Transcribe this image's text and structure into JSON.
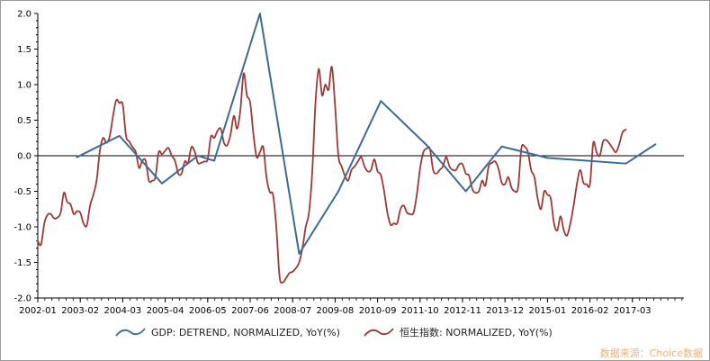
{
  "chart_data": {
    "type": "line",
    "title": "",
    "xlabel": "",
    "ylabel": "",
    "ylim": [
      -2.0,
      2.0
    ],
    "y_ticks": [
      "2.0",
      "1.5",
      "1.0",
      "0.5",
      "0.0",
      "-0.5",
      "-1.0",
      "-1.5",
      "-2.0"
    ],
    "x_tick_labels": [
      "2002-01",
      "2003-02",
      "2004-03",
      "2005-04",
      "2006-05",
      "2007-06",
      "2008-07",
      "2009-08",
      "2010-09",
      "2011-10",
      "2012-11",
      "2013-12",
      "2015-01",
      "2016-02",
      "2017-03"
    ],
    "zero_line": true,
    "grid": false,
    "legend_position": "bottom",
    "series": [
      {
        "name": "GDP: DETREND, NORMALIZED, YoY(%)",
        "color": "#3e6b94",
        "points": [
          [
            "2003-01",
            -0.02
          ],
          [
            "2004-02",
            0.28
          ],
          [
            "2005-03",
            -0.39
          ],
          [
            "2006-02",
            0.0
          ],
          [
            "2006-07",
            -0.07
          ],
          [
            "2007-09",
            2.0
          ],
          [
            "2008-09",
            -1.38
          ],
          [
            "2009-09",
            -0.5
          ],
          [
            "2010-10",
            0.77
          ],
          [
            "2011-12",
            0.15
          ],
          [
            "2012-12",
            -0.5
          ],
          [
            "2013-11",
            0.13
          ],
          [
            "2015-01",
            -0.03
          ],
          [
            "2017-01",
            -0.11
          ],
          [
            "2017-10",
            0.16
          ]
        ]
      },
      {
        "name": "恒生指数: NORMALIZED, YoY(%)",
        "color": "#9c3a36",
        "points": [
          [
            "2002-01",
            -1.2
          ],
          [
            "2002-02",
            -1.25
          ],
          [
            "2002-03",
            -0.95
          ],
          [
            "2002-04",
            -0.83
          ],
          [
            "2002-05",
            -0.82
          ],
          [
            "2002-06",
            -0.88
          ],
          [
            "2002-07",
            -0.87
          ],
          [
            "2002-08",
            -0.8
          ],
          [
            "2002-09",
            -0.52
          ],
          [
            "2002-10",
            -0.65
          ],
          [
            "2002-11",
            -0.68
          ],
          [
            "2002-12",
            -0.82
          ],
          [
            "2003-01",
            -0.78
          ],
          [
            "2003-02",
            -0.8
          ],
          [
            "2003-03",
            -0.95
          ],
          [
            "2003-04",
            -0.98
          ],
          [
            "2003-05",
            -0.7
          ],
          [
            "2003-06",
            -0.55
          ],
          [
            "2003-07",
            -0.35
          ],
          [
            "2003-08",
            0.07
          ],
          [
            "2003-09",
            0.25
          ],
          [
            "2003-10",
            0.18
          ],
          [
            "2003-11",
            0.27
          ],
          [
            "2003-12",
            0.55
          ],
          [
            "2004-01",
            0.78
          ],
          [
            "2004-02",
            0.74
          ],
          [
            "2004-03",
            0.72
          ],
          [
            "2004-04",
            0.28
          ],
          [
            "2004-05",
            0.2
          ],
          [
            "2004-06",
            0.12
          ],
          [
            "2004-07",
            0.05
          ],
          [
            "2004-08",
            -0.17
          ],
          [
            "2004-09",
            -0.07
          ],
          [
            "2004-10",
            -0.07
          ],
          [
            "2004-11",
            -0.35
          ],
          [
            "2004-12",
            -0.35
          ],
          [
            "2005-01",
            -0.3
          ],
          [
            "2005-02",
            0.05
          ],
          [
            "2005-03",
            0.02
          ],
          [
            "2005-04",
            0.07
          ],
          [
            "2005-05",
            0.11
          ],
          [
            "2005-06",
            0.0
          ],
          [
            "2005-07",
            -0.07
          ],
          [
            "2005-08",
            -0.25
          ],
          [
            "2005-09",
            -0.25
          ],
          [
            "2005-10",
            -0.08
          ],
          [
            "2005-11",
            -0.1
          ],
          [
            "2005-12",
            0.12
          ],
          [
            "2006-01",
            0.06
          ],
          [
            "2006-02",
            -0.1
          ],
          [
            "2006-03",
            -0.1
          ],
          [
            "2006-04",
            -0.08
          ],
          [
            "2006-05",
            -0.05
          ],
          [
            "2006-06",
            0.27
          ],
          [
            "2006-07",
            0.25
          ],
          [
            "2006-08",
            0.35
          ],
          [
            "2006-09",
            0.38
          ],
          [
            "2006-10",
            0.18
          ],
          [
            "2006-11",
            0.15
          ],
          [
            "2006-12",
            0.3
          ],
          [
            "2007-01",
            0.56
          ],
          [
            "2007-02",
            0.38
          ],
          [
            "2007-03",
            0.64
          ],
          [
            "2007-04",
            1.16
          ],
          [
            "2007-05",
            0.85
          ],
          [
            "2007-06",
            0.75
          ],
          [
            "2007-07",
            0.3
          ],
          [
            "2007-08",
            -0.02
          ],
          [
            "2007-09",
            0.05
          ],
          [
            "2007-10",
            0.12
          ],
          [
            "2007-11",
            -0.3
          ],
          [
            "2007-12",
            -0.51
          ],
          [
            "2008-01",
            -0.55
          ],
          [
            "2008-02",
            -1.0
          ],
          [
            "2008-03",
            -1.7
          ],
          [
            "2008-04",
            -1.78
          ],
          [
            "2008-05",
            -1.72
          ],
          [
            "2008-06",
            -1.65
          ],
          [
            "2008-07",
            -1.63
          ],
          [
            "2008-08",
            -1.58
          ],
          [
            "2008-09",
            -1.5
          ],
          [
            "2008-10",
            -1.3
          ],
          [
            "2008-11",
            -1.0
          ],
          [
            "2008-12",
            -0.8
          ],
          [
            "2009-01",
            -0.23
          ],
          [
            "2009-02",
            0.75
          ],
          [
            "2009-03",
            1.22
          ],
          [
            "2009-04",
            0.85
          ],
          [
            "2009-05",
            1.0
          ],
          [
            "2009-06",
            0.93
          ],
          [
            "2009-07",
            1.25
          ],
          [
            "2009-08",
            0.7
          ],
          [
            "2009-09",
            0.0
          ],
          [
            "2009-10",
            -0.15
          ],
          [
            "2009-11",
            -0.28
          ],
          [
            "2009-12",
            -0.35
          ],
          [
            "2010-01",
            -0.2
          ],
          [
            "2010-02",
            -0.15
          ],
          [
            "2010-03",
            -0.08
          ],
          [
            "2010-04",
            -0.02
          ],
          [
            "2010-05",
            -0.15
          ],
          [
            "2010-06",
            -0.22
          ],
          [
            "2010-07",
            -0.2
          ],
          [
            "2010-08",
            -0.05
          ],
          [
            "2010-09",
            -0.22
          ],
          [
            "2010-10",
            -0.27
          ],
          [
            "2010-11",
            -0.5
          ],
          [
            "2010-12",
            -0.8
          ],
          [
            "2011-01",
            -0.97
          ],
          [
            "2011-02",
            -0.95
          ],
          [
            "2011-03",
            -0.95
          ],
          [
            "2011-04",
            -0.75
          ],
          [
            "2011-05",
            -0.7
          ],
          [
            "2011-06",
            -0.8
          ],
          [
            "2011-07",
            -0.82
          ],
          [
            "2011-08",
            -0.8
          ],
          [
            "2011-09",
            -0.55
          ],
          [
            "2011-10",
            -0.18
          ],
          [
            "2011-11",
            0.05
          ],
          [
            "2011-12",
            0.1
          ],
          [
            "2012-01",
            0.1
          ],
          [
            "2012-02",
            -0.2
          ],
          [
            "2012-03",
            -0.25
          ],
          [
            "2012-04",
            -0.2
          ],
          [
            "2012-05",
            -0.15
          ],
          [
            "2012-06",
            -0.02
          ],
          [
            "2012-07",
            -0.15
          ],
          [
            "2012-08",
            -0.2
          ],
          [
            "2012-09",
            -0.2
          ],
          [
            "2012-10",
            -0.12
          ],
          [
            "2012-11",
            -0.12
          ],
          [
            "2012-12",
            -0.25
          ],
          [
            "2013-01",
            -0.28
          ],
          [
            "2013-02",
            -0.47
          ],
          [
            "2013-03",
            -0.52
          ],
          [
            "2013-04",
            -0.5
          ],
          [
            "2013-05",
            -0.35
          ],
          [
            "2013-06",
            -0.42
          ],
          [
            "2013-07",
            -0.15
          ],
          [
            "2013-08",
            -0.1
          ],
          [
            "2013-09",
            -0.08
          ],
          [
            "2013-10",
            -0.18
          ],
          [
            "2013-11",
            -0.38
          ],
          [
            "2013-12",
            -0.4
          ],
          [
            "2014-01",
            -0.3
          ],
          [
            "2014-02",
            -0.45
          ],
          [
            "2014-03",
            -0.5
          ],
          [
            "2014-04",
            -0.45
          ],
          [
            "2014-05",
            0.1
          ],
          [
            "2014-06",
            0.13
          ],
          [
            "2014-07",
            0.05
          ],
          [
            "2014-08",
            -0.2
          ],
          [
            "2014-09",
            -0.3
          ],
          [
            "2014-10",
            -0.6
          ],
          [
            "2014-11",
            -0.75
          ],
          [
            "2014-12",
            -0.5
          ],
          [
            "2015-01",
            -0.55
          ],
          [
            "2015-02",
            -0.6
          ],
          [
            "2015-03",
            -0.95
          ],
          [
            "2015-04",
            -1.05
          ],
          [
            "2015-05",
            -0.85
          ],
          [
            "2015-06",
            -1.05
          ],
          [
            "2015-07",
            -1.12
          ],
          [
            "2015-08",
            -0.95
          ],
          [
            "2015-09",
            -0.7
          ],
          [
            "2015-10",
            -0.4
          ],
          [
            "2015-11",
            -0.2
          ],
          [
            "2015-12",
            -0.38
          ],
          [
            "2016-01",
            -0.4
          ],
          [
            "2016-02",
            -0.4
          ],
          [
            "2016-03",
            0.18
          ],
          [
            "2016-04",
            0.05
          ],
          [
            "2016-05",
            0.0
          ],
          [
            "2016-06",
            0.2
          ],
          [
            "2016-07",
            0.22
          ],
          [
            "2016-08",
            0.17
          ],
          [
            "2016-09",
            0.1
          ],
          [
            "2016-10",
            0.05
          ],
          [
            "2016-11",
            0.17
          ],
          [
            "2016-12",
            0.33
          ],
          [
            "2017-01",
            0.37
          ]
        ]
      }
    ],
    "zero_line_color": "#000000"
  },
  "legend": {
    "items": [
      {
        "label": "GDP: DETREND, NORMALIZED, YoY(%)",
        "color": "#3e6b94"
      },
      {
        "label": "恒生指数: NORMALIZED, YoY(%)",
        "color": "#9c3a36"
      }
    ]
  },
  "source_note": "数据来源：Choice数据"
}
